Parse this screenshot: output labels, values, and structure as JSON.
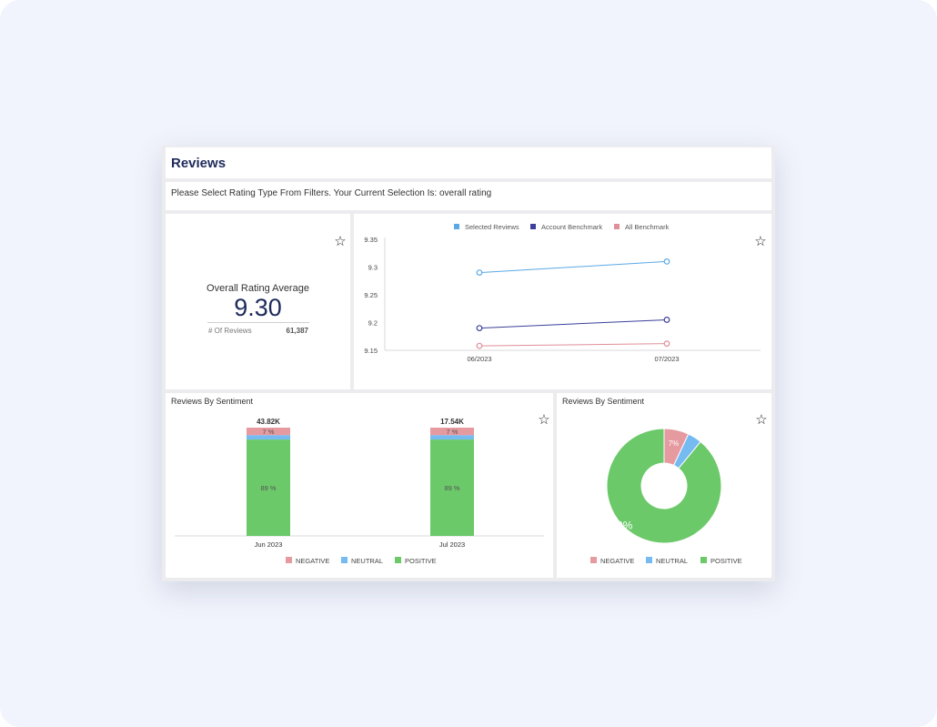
{
  "page": {
    "title": "Reviews",
    "filter_text": "Please Select Rating Type From Filters. Your Current Selection Is: overall rating"
  },
  "kpi": {
    "label": "Overall Rating Average",
    "value": "9.30",
    "sub_label": "# Of Reviews",
    "sub_value": "61,387"
  },
  "colors": {
    "selected": "#5aa9e6",
    "account": "#3b3f9b",
    "all": "#e08f98",
    "negative": "#e59aa0",
    "neutral": "#75baf0",
    "positive": "#6cc96a"
  },
  "chart_data": [
    {
      "type": "line",
      "x": [
        "06/2023",
        "07/2023"
      ],
      "series": [
        {
          "name": "Selected Reviews",
          "values": [
            9.29,
            9.31
          ]
        },
        {
          "name": "Account Benchmark",
          "values": [
            9.19,
            9.205
          ]
        },
        {
          "name": "All Benchmark",
          "values": [
            9.158,
            9.162
          ]
        }
      ],
      "yticks": [
        "9.35",
        "9.3",
        "9.25",
        "9.2",
        "9.15"
      ],
      "ylim": [
        9.15,
        9.35
      ],
      "legend": "top"
    },
    {
      "type": "bar",
      "title": "Reviews By Sentiment",
      "categories": [
        "Jun 2023",
        "Jul 2023"
      ],
      "totals": [
        "43.82K",
        "17.54K"
      ],
      "series": [
        {
          "name": "NEGATIVE",
          "values": [
            7,
            7
          ],
          "labels": [
            "7 %",
            "7 %"
          ]
        },
        {
          "name": "NEUTRAL",
          "values": [
            4,
            4
          ]
        },
        {
          "name": "POSITIVE",
          "values": [
            89,
            89
          ],
          "labels": [
            "89 %",
            "89 %"
          ]
        }
      ],
      "legend": "bottom"
    },
    {
      "type": "pie",
      "title": "Reviews By Sentiment",
      "slices": [
        {
          "name": "NEGATIVE",
          "value": 7,
          "label": "7%"
        },
        {
          "name": "NEUTRAL",
          "value": 4
        },
        {
          "name": "POSITIVE",
          "value": 89,
          "label": "89%"
        }
      ],
      "legend": "bottom"
    }
  ]
}
